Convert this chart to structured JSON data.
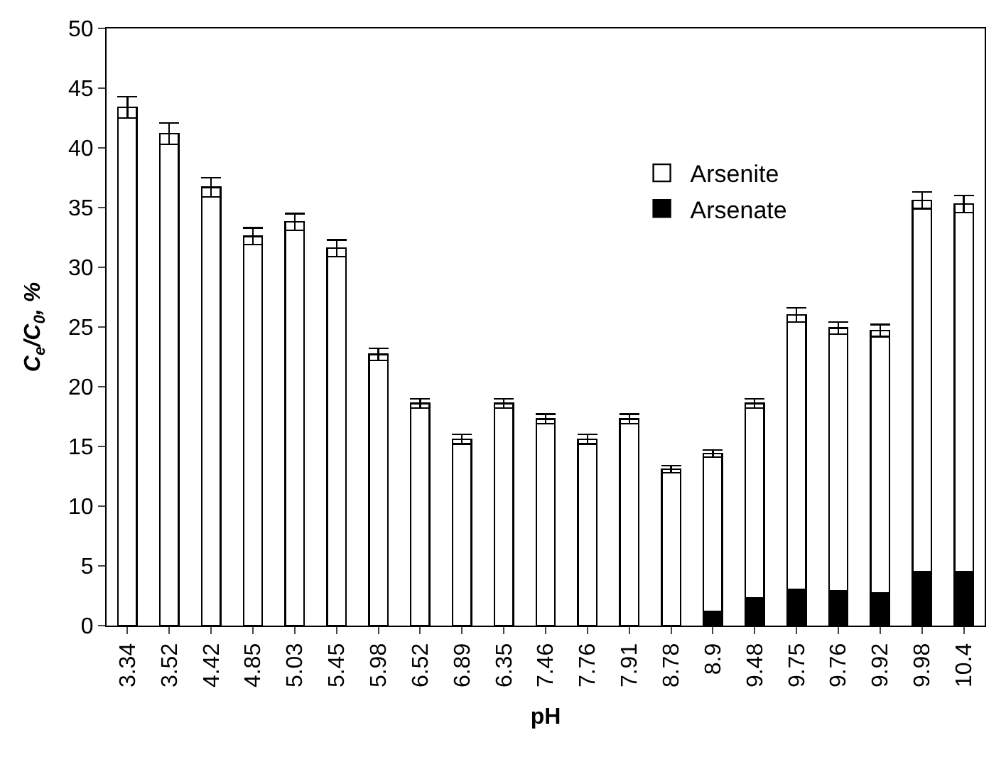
{
  "chart_data": {
    "type": "bar",
    "stacked": true,
    "xlabel": "pH",
    "ylabel": "C$_{e}$/C$_{0}$, %",
    "categories": [
      "3.34",
      "3.52",
      "4.42",
      "4.85",
      "5.03",
      "5.45",
      "5.98",
      "6.52",
      "6.89",
      "6.35",
      "7.46",
      "7.76",
      "7.91",
      "8.78",
      "8.9",
      "9.48",
      "9.75",
      "9.76",
      "9.92",
      "9.98",
      "10.4"
    ],
    "series": [
      {
        "name": "Arsenate",
        "color": "#000000",
        "values": [
          null,
          null,
          null,
          null,
          null,
          null,
          null,
          null,
          null,
          null,
          null,
          null,
          null,
          null,
          1.2,
          2.3,
          3.0,
          2.9,
          2.7,
          4.5,
          4.5
        ]
      },
      {
        "name": "Arsenite",
        "color": "#ffffff",
        "values": [
          43.4,
          41.2,
          36.7,
          32.6,
          33.8,
          31.6,
          22.7,
          18.6,
          15.6,
          18.6,
          17.3,
          15.6,
          17.3,
          13.1,
          13.2,
          16.3,
          23.0,
          22.0,
          22.0,
          31.1,
          30.8
        ],
        "errors": [
          0.9,
          0.9,
          0.8,
          0.7,
          0.7,
          0.7,
          0.5,
          0.4,
          0.4,
          0.4,
          0.4,
          0.4,
          0.4,
          0.3,
          0.3,
          0.4,
          0.6,
          0.5,
          0.5,
          0.7,
          0.7
        ]
      }
    ],
    "ylim": [
      0,
      50
    ],
    "yticks": [
      0,
      5,
      10,
      15,
      20,
      25,
      30,
      35,
      40,
      45,
      50
    ],
    "legend": "top right"
  }
}
